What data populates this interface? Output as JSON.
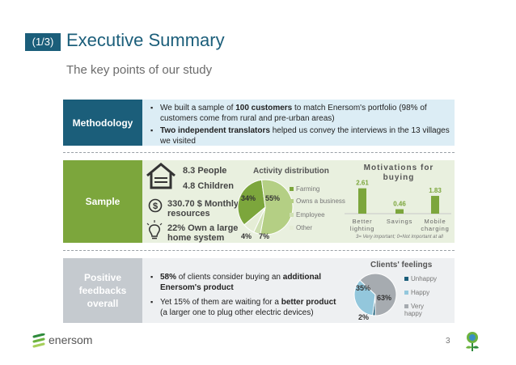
{
  "header": {
    "badge": "(1/3)",
    "title": "Executive Summary",
    "subtitle": "The key points of our study"
  },
  "methodology": {
    "label": "Methodology",
    "bullets": [
      {
        "pre": "We built a sample of ",
        "bold": "100 customers",
        "post": " to match Enersom's portfolio (98% of customers come from rural and pre-urban areas)"
      },
      {
        "pre": "",
        "bold": "Two independent translators",
        "post": " helped us convey the interviews in the 13 villages we visited"
      }
    ]
  },
  "sample": {
    "label": "Sample",
    "stats": {
      "people": "8.3 People",
      "children": "4.8 Children",
      "monthly": "330.70 $ Monthly",
      "resources": "resources",
      "home_line1": "22% Own a large",
      "home_line2": "home system"
    },
    "activity": {
      "title": "Activity distribution",
      "legend": [
        "Farming",
        "Owns a business",
        "Employee",
        "Other"
      ],
      "labels": {
        "a": "34%",
        "b": "55%",
        "c": "4%",
        "d": "7%"
      }
    },
    "motivations": {
      "title": "Motivations for buying",
      "note": "3= Very important; 0=Not important at all"
    }
  },
  "feedback": {
    "label_line1": "Positive",
    "label_line2": "feedbacks",
    "label_line3": "overall",
    "bullets": [
      {
        "pre": "",
        "bold": "58%",
        "mid": " of clients consider buying an ",
        "bold2": "additional Enersom's product",
        "post": ""
      },
      {
        "pre": "Yet 15% of them are waiting for a ",
        "bold": "better product",
        "mid": " (a larger one to plug other electric devices)",
        "bold2": "",
        "post": ""
      }
    ],
    "feelings": {
      "title": "Clients' feelings",
      "legend": [
        "Unhappy",
        "Happy",
        "Very happy"
      ],
      "labels": {
        "a": "35%",
        "b": "63%",
        "c": "2%"
      }
    }
  },
  "footer": {
    "brand": "enersom",
    "page": "3"
  },
  "colors": {
    "navy": "#1b5e7a",
    "green": "#7ca63c",
    "light_blue_bg": "#dcedf5",
    "light_green_bg": "#e9f0df",
    "light_gray_bg": "#eef0f2",
    "feedback_label": "#c5cacf"
  },
  "chart_data": [
    {
      "type": "pie",
      "title": "Activity distribution",
      "categories": [
        "Farming",
        "Owns a business",
        "Employee",
        "Other"
      ],
      "values": [
        34,
        55,
        4,
        7
      ],
      "legend": "right"
    },
    {
      "type": "bar",
      "title": "Motivations for buying",
      "categories": [
        "Better lighting",
        "Savings",
        "Mobile charging"
      ],
      "values": [
        2.61,
        0.46,
        1.83
      ],
      "note": "3= Very important; 0=Not important at all",
      "ylim": [
        0,
        3
      ]
    },
    {
      "type": "pie",
      "title": "Clients' feelings",
      "categories": [
        "Unhappy",
        "Happy",
        "Very happy"
      ],
      "values": [
        2,
        35,
        63
      ],
      "legend": "right"
    }
  ]
}
